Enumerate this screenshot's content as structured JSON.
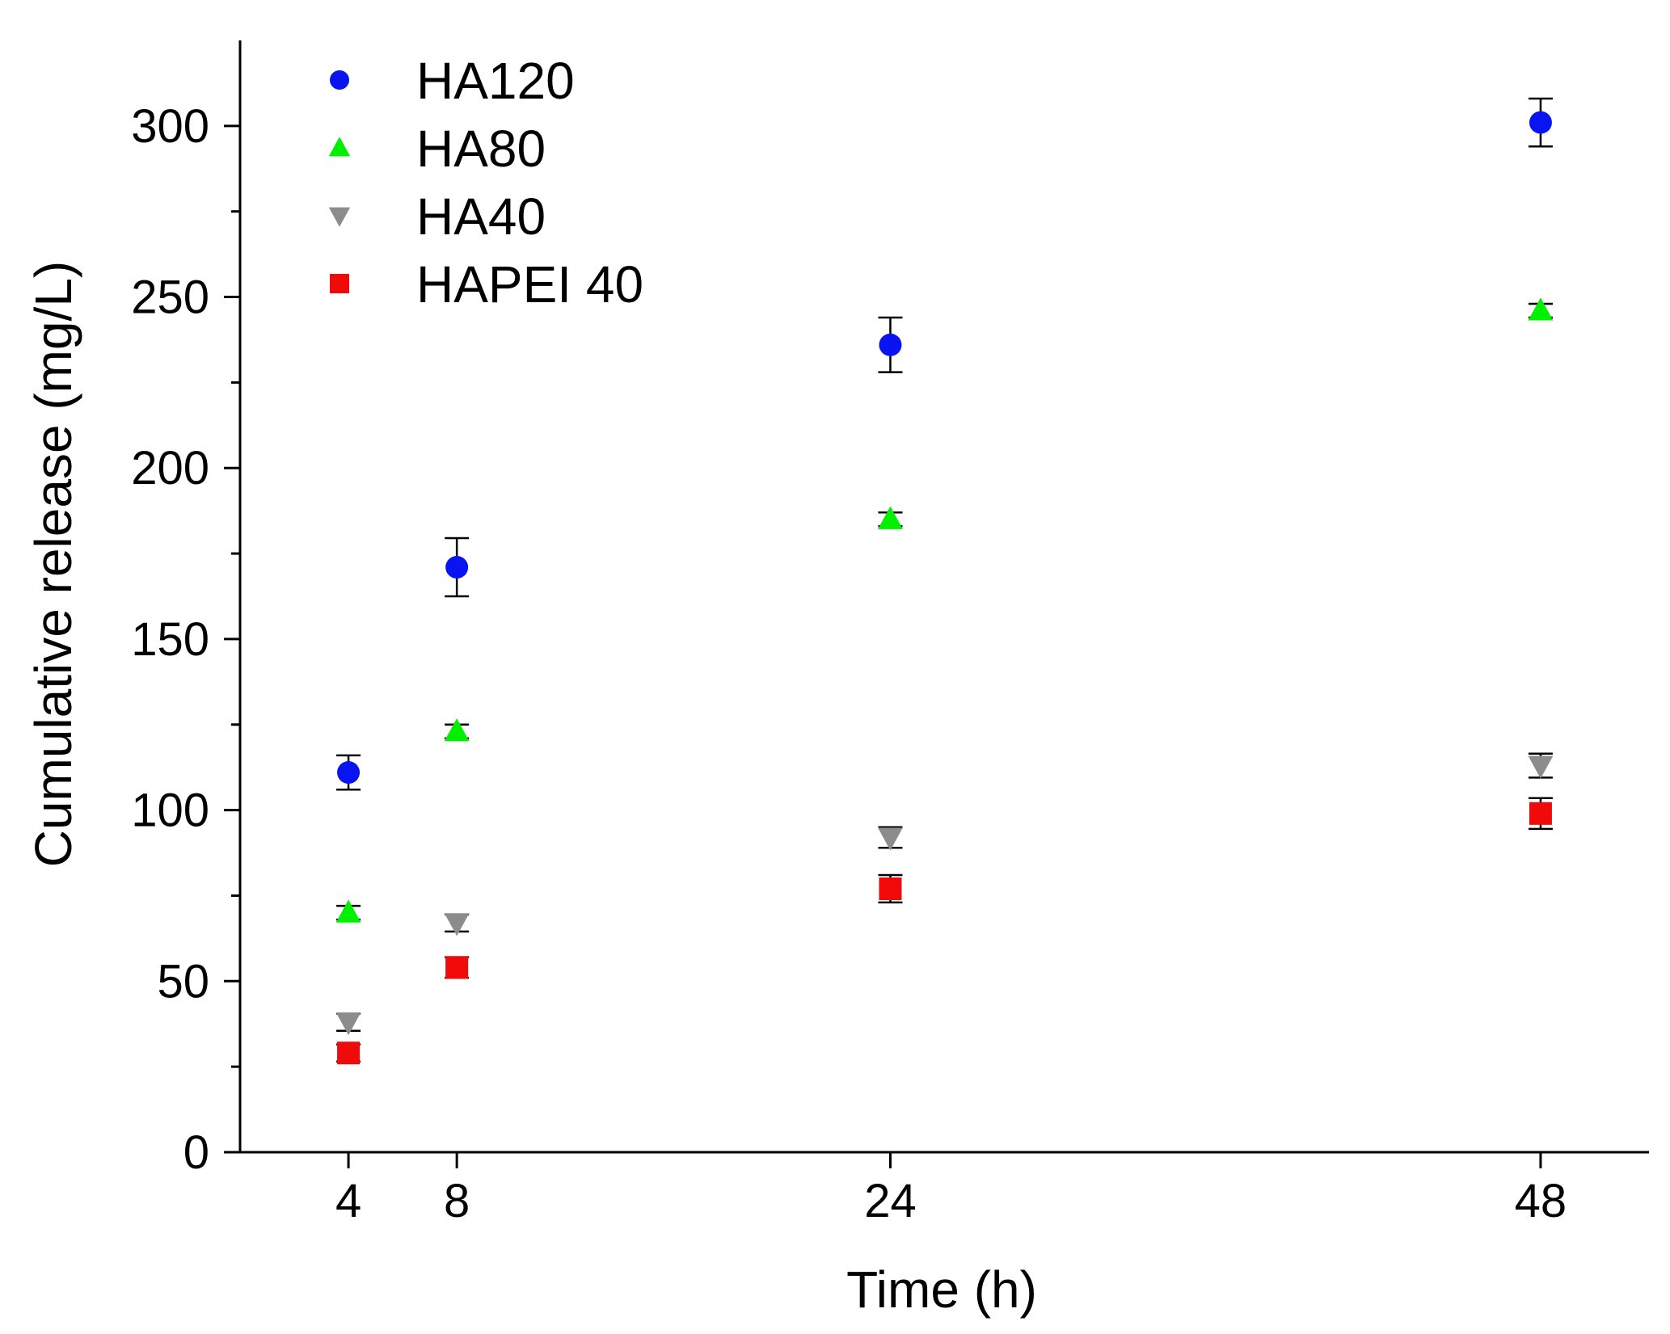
{
  "chart_data": {
    "type": "scatter",
    "title": "",
    "xlabel": "Time (h)",
    "ylabel": "Cumulative release (mg/L)",
    "x_ticks": [
      4,
      8,
      24,
      48
    ],
    "y_ticks": [
      0,
      50,
      100,
      150,
      200,
      250,
      300
    ],
    "ylim": [
      0,
      325
    ],
    "xlim": [
      0,
      52
    ],
    "grid": false,
    "legend_position": "top-left",
    "series": [
      {
        "name": "HA120",
        "color": "#0a14f0",
        "marker": "circle",
        "x": [
          4,
          8,
          24,
          48
        ],
        "y": [
          111,
          171,
          236,
          301
        ],
        "error": [
          5,
          8.5,
          8,
          7
        ]
      },
      {
        "name": "HA80",
        "color": "#00f000",
        "marker": "triangle-up",
        "x": [
          4,
          8,
          24,
          48
        ],
        "y": [
          70,
          123,
          185,
          246
        ],
        "error": [
          2,
          2,
          2,
          2
        ]
      },
      {
        "name": "HA40",
        "color": "#8c8c8c",
        "marker": "triangle-down",
        "x": [
          4,
          8,
          24,
          48
        ],
        "y": [
          38,
          67,
          92,
          113
        ],
        "error": [
          2.5,
          2.5,
          3,
          3.5
        ]
      },
      {
        "name": "HAPEI 40",
        "color": "#f00a0a",
        "marker": "square",
        "x": [
          4,
          8,
          24,
          48
        ],
        "y": [
          29,
          54,
          77,
          99
        ],
        "error": [
          2.5,
          3,
          4,
          4.5
        ]
      }
    ]
  }
}
